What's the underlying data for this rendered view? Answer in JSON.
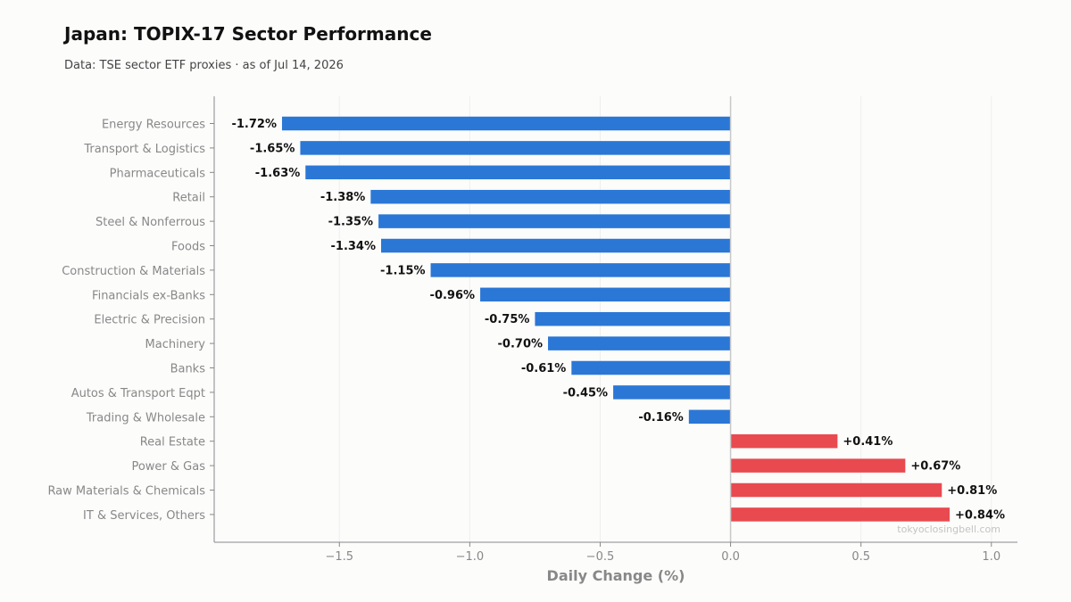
{
  "header": {
    "title": "Japan: TOPIX-17 Sector Performance",
    "subtitle": "Data: TSE sector ETF proxies · as of Jul 14, 2026"
  },
  "watermark": "tokyoclosingbell.com",
  "colors": {
    "negative": "#2a77d6",
    "positive": "#e84a4f",
    "axis": "#888888",
    "zero_line": "#c8c8c8",
    "grid": "#eeeeee"
  },
  "chart_data": {
    "type": "bar",
    "orientation": "horizontal",
    "title": "Japan: TOPIX-17 Sector Performance",
    "subtitle": "Data: TSE sector ETF proxies · as of Jul 14, 2026",
    "xlabel": "Daily Change (%)",
    "ylabel": "",
    "xlim": [
      -1.98,
      1.1
    ],
    "xticks": [
      -1.5,
      -1.0,
      -0.5,
      0.0,
      0.5,
      1.0
    ],
    "xtick_labels": [
      "−1.5",
      "−1.0",
      "−0.5",
      "0.0",
      "0.5",
      "1.0"
    ],
    "grid": "x",
    "categories": [
      "Energy Resources",
      "Transport & Logistics",
      "Pharmaceuticals",
      "Retail",
      "Steel & Nonferrous",
      "Foods",
      "Construction & Materials",
      "Financials ex-Banks",
      "Electric & Precision",
      "Machinery",
      "Banks",
      "Autos & Transport Eqpt",
      "Trading & Wholesale",
      "Real Estate",
      "Power & Gas",
      "Raw Materials & Chemicals",
      "IT & Services, Others"
    ],
    "values": [
      -1.72,
      -1.65,
      -1.63,
      -1.38,
      -1.35,
      -1.34,
      -1.15,
      -0.96,
      -0.75,
      -0.7,
      -0.61,
      -0.45,
      -0.16,
      0.41,
      0.67,
      0.81,
      0.84
    ],
    "data_labels": [
      "-1.72%",
      "-1.65%",
      "-1.63%",
      "-1.38%",
      "-1.35%",
      "-1.34%",
      "-1.15%",
      "-0.96%",
      "-0.75%",
      "-0.70%",
      "-0.61%",
      "-0.45%",
      "-0.16%",
      "+0.41%",
      "+0.67%",
      "+0.81%",
      "+0.84%"
    ]
  }
}
